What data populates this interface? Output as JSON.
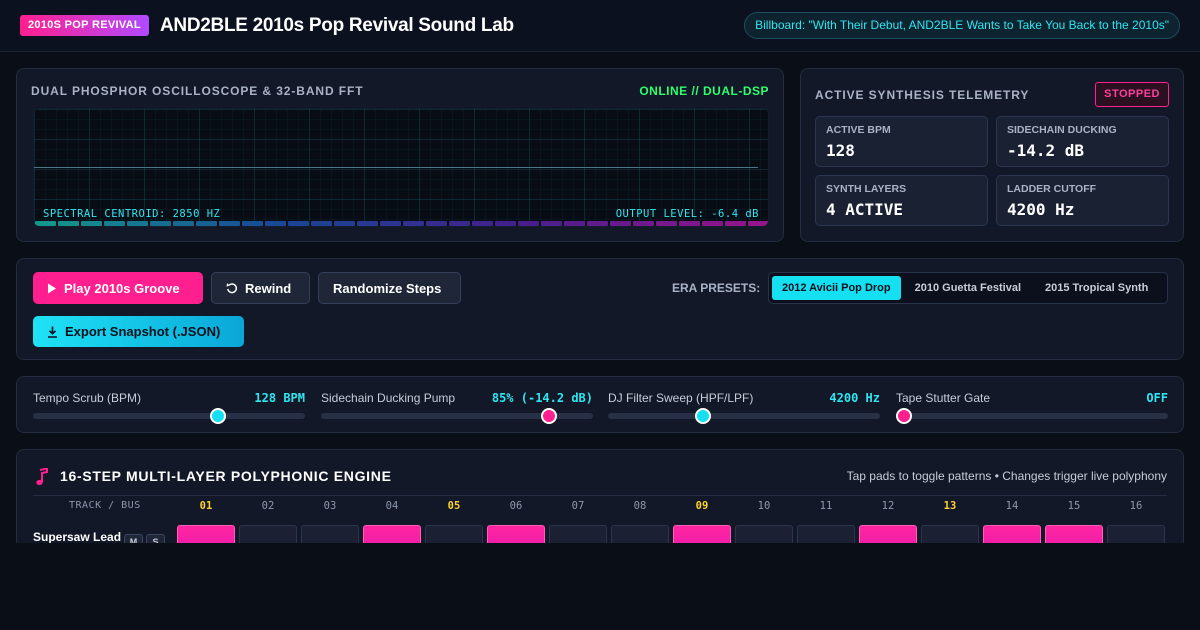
{
  "header": {
    "badge": "2010S POP REVIVAL",
    "title": "AND2BLE 2010s Pop Revival Sound Lab",
    "news": "Billboard: \"With Their Debut, AND2BLE Wants to Take You Back to the 2010s\""
  },
  "oscilloscope": {
    "title": "DUAL PHOSPHOR OSCILLOSCOPE & 32-BAND FFT",
    "status": "ONLINE // DUAL-DSP",
    "centroid": "SPECTRAL CENTROID: 2850 HZ",
    "output_level": "OUTPUT LEVEL: -6.4 dB",
    "band_count": 32
  },
  "telemetry": {
    "title": "ACTIVE SYNTHESIS TELEMETRY",
    "status": "STOPPED",
    "metrics": [
      {
        "label": "ACTIVE BPM",
        "value": "128"
      },
      {
        "label": "SIDECHAIN DUCKING",
        "value": "-14.2 dB"
      },
      {
        "label": "SYNTH LAYERS",
        "value": "4 ACTIVE"
      },
      {
        "label": "LADDER CUTOFF",
        "value": "4200 Hz"
      }
    ]
  },
  "transport": {
    "play": "Play 2010s Groove",
    "rewind": "Rewind",
    "randomize": "Randomize Steps",
    "export": "Export Snapshot (.JSON)",
    "era_label": "ERA PRESETS:",
    "era_presets": [
      "2012 Avicii Pop Drop",
      "2010 Guetta Festival",
      "2015 Tropical Synth"
    ],
    "active_preset": "2012 Avicii Pop Drop"
  },
  "sliders": [
    {
      "label": "Tempo Scrub (BPM)",
      "value": "128 BPM",
      "fraction": 0.68,
      "thumb_color": "#14e0f2"
    },
    {
      "label": "Sidechain Ducking Pump",
      "value": "85% (-14.2 dB)",
      "fraction": 0.84,
      "thumb_color": "#ff1f8e"
    },
    {
      "label": "DJ Filter Sweep (HPF/LPF)",
      "value": "4200 Hz",
      "fraction": 0.35,
      "thumb_color": "#14e0f2"
    },
    {
      "label": "Tape Stutter Gate",
      "value": "OFF",
      "fraction": 0.03,
      "thumb_color": "#ff1f8e"
    }
  ],
  "sequencer": {
    "title": "16-STEP MULTI-LAYER POLYPHONIC ENGINE",
    "hint": "Tap pads to toggle patterns • Changes trigger live polyphony",
    "track_header": "TRACK / BUS",
    "steps": [
      "01",
      "02",
      "03",
      "04",
      "05",
      "06",
      "07",
      "08",
      "09",
      "10",
      "11",
      "12",
      "13",
      "14",
      "15",
      "16"
    ],
    "beat_steps": [
      "01",
      "05",
      "09",
      "13"
    ],
    "tracks": [
      {
        "name": "Supersaw Lead",
        "mute": "M",
        "solo": "S",
        "pattern": [
          1,
          0,
          0,
          1,
          0,
          1,
          0,
          0,
          1,
          0,
          0,
          1,
          0,
          1,
          1,
          0
        ]
      }
    ]
  },
  "colors": {
    "accent_pink": "#ff1f8e",
    "accent_cyan": "#14e0f2",
    "online_green": "#2eff6e"
  }
}
